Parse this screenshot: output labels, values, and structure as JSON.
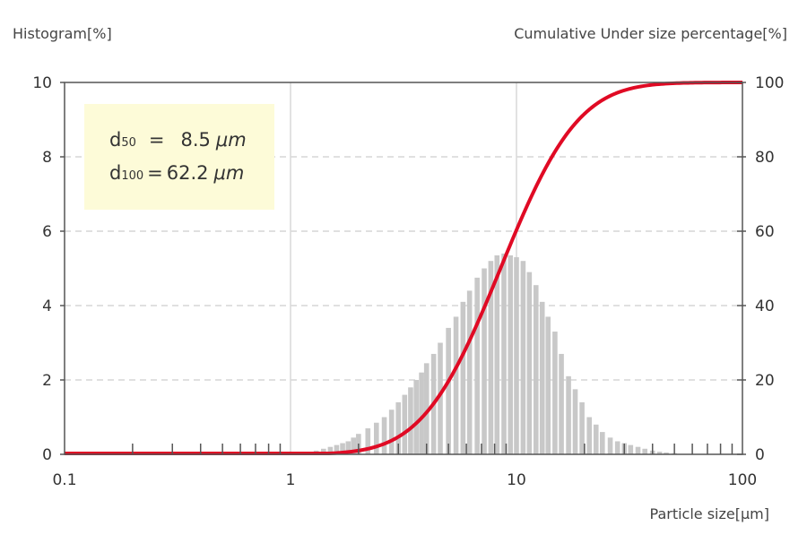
{
  "chart_data": {
    "type": "bar+line",
    "ylabel_left": "Histogram[%]",
    "ylabel_right": "Cumulative Under size percentage[%]",
    "xlabel": "Particle size[μm]",
    "x_scale": "log",
    "xlim": [
      0.1,
      100
    ],
    "x_ticks": [
      "0.1",
      "1",
      "10",
      "100"
    ],
    "ylim_left": [
      0,
      10
    ],
    "y_ticks_left": [
      "0",
      "2",
      "4",
      "6",
      "8",
      "10"
    ],
    "ylim_right": [
      0,
      100
    ],
    "y_ticks_right": [
      "0",
      "20",
      "40",
      "60",
      "80",
      "100"
    ],
    "grid": "horizontal dashed + vertical at decades",
    "annotation": {
      "lines": [
        {
          "symbol": "d",
          "sub": "50",
          "eq": "=",
          "value": "8.5",
          "unit": "μm"
        },
        {
          "symbol": "d",
          "sub": "100",
          "eq": "=",
          "value": "62.2",
          "unit": "μm"
        }
      ]
    },
    "histogram": {
      "name": "",
      "color": "#c8c8c8",
      "x": [
        1.2,
        1.3,
        1.4,
        1.5,
        1.6,
        1.7,
        1.8,
        1.9,
        2.0,
        2.2,
        2.4,
        2.6,
        2.8,
        3.0,
        3.2,
        3.4,
        3.6,
        3.8,
        4.0,
        4.3,
        4.6,
        5.0,
        5.4,
        5.8,
        6.2,
        6.7,
        7.2,
        7.7,
        8.2,
        8.8,
        9.4,
        10.0,
        10.7,
        11.4,
        12.2,
        13.0,
        13.8,
        14.8,
        15.8,
        17.0,
        18.2,
        19.5,
        21.0,
        22.5,
        24.0,
        26.0,
        28.0,
        30.0,
        32.0,
        34.5,
        37.0,
        40.0,
        43.0,
        46.0,
        50.0
      ],
      "values": [
        0.05,
        0.1,
        0.15,
        0.2,
        0.25,
        0.3,
        0.35,
        0.45,
        0.55,
        0.7,
        0.85,
        1.0,
        1.2,
        1.4,
        1.6,
        1.8,
        2.0,
        2.2,
        2.45,
        2.7,
        3.0,
        3.4,
        3.7,
        4.1,
        4.4,
        4.75,
        5.0,
        5.2,
        5.35,
        5.4,
        5.35,
        5.3,
        5.2,
        4.9,
        4.55,
        4.1,
        3.7,
        3.3,
        2.7,
        2.1,
        1.75,
        1.4,
        1.0,
        0.8,
        0.6,
        0.45,
        0.35,
        0.3,
        0.25,
        0.2,
        0.15,
        0.1,
        0.07,
        0.05,
        0.03
      ]
    },
    "cumulative": {
      "name": "",
      "color": "#e00a24",
      "median": 8.5,
      "sigma_log10": 0.27,
      "start": 1.1
    }
  }
}
